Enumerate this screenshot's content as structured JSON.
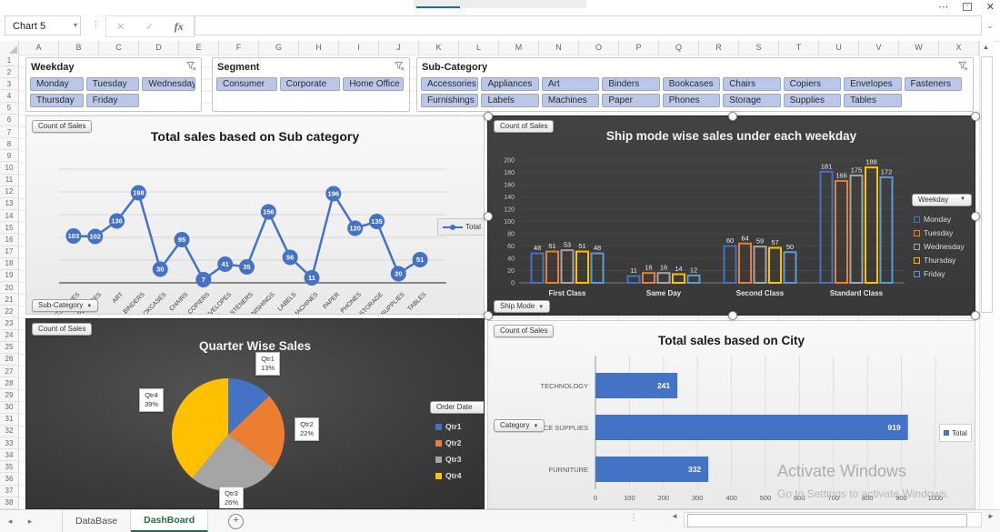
{
  "window": {
    "name_box": "Chart 5",
    "formula_value": ""
  },
  "icons": {
    "name_box_dropdown": "▾",
    "formula_cancel": "✕",
    "formula_enter": "✓",
    "formula_fx": "fx",
    "formula_expand": "⌄",
    "more": "⋯",
    "ribbon_pin": "↑",
    "close": "✕",
    "dots": "⋮",
    "tab_prev": "◂",
    "tab_next": "▸",
    "scroll_up": "▲",
    "scroll_left": "◄",
    "scroll_right": "►",
    "add_sheet": "+",
    "dropdown": "▾"
  },
  "grid": {
    "columns": [
      "A",
      "B",
      "C",
      "D",
      "E",
      "F",
      "G",
      "H",
      "I",
      "J",
      "K",
      "L",
      "M",
      "N",
      "O",
      "P",
      "Q",
      "R",
      "S",
      "T",
      "U",
      "V",
      "W",
      "X"
    ],
    "rows": [
      1,
      2,
      3,
      4,
      5,
      6,
      7,
      8,
      9,
      10,
      11,
      12,
      13,
      14,
      15,
      16,
      17,
      18,
      19,
      20,
      21,
      22,
      23,
      24,
      25,
      26,
      27,
      28,
      29,
      30,
      31,
      32,
      33,
      34,
      35,
      36,
      37,
      38
    ]
  },
  "slicers": [
    {
      "title": "Weekday",
      "items": [
        "Monday",
        "Tuesday",
        "Wednesday",
        "Thursday",
        "Friday"
      ],
      "per_row": 3
    },
    {
      "title": "Segment",
      "items": [
        "Consumer",
        "Corporate",
        "Home Office"
      ],
      "per_row": 3
    },
    {
      "title": "Sub-Category",
      "items": [
        "Accessories",
        "Appliances",
        "Art",
        "Binders",
        "Bookcases",
        "Chairs",
        "Copiers",
        "Envelopes",
        "Fasteners",
        "Furnishings",
        "Labels",
        "Machines",
        "Paper",
        "Phones",
        "Storage",
        "Supplies",
        "Tables"
      ],
      "per_row": 9
    }
  ],
  "chart_data": [
    {
      "type": "line",
      "title": "Total sales based on Sub category",
      "categories": [
        "ACCESSORIES",
        "APPLIANCES",
        "ART",
        "BINDERS",
        "BOOKCASES",
        "CHAIRS",
        "COPIERS",
        "ENVELOPES",
        "FASTENERS",
        "FURNISHINGS",
        "LABELS",
        "MACHINES",
        "PAPER",
        "PHONES",
        "STORAGE",
        "SUPPLIES",
        "TABLES"
      ],
      "values": [
        103,
        102,
        136,
        198,
        30,
        95,
        7,
        41,
        35,
        156,
        56,
        11,
        196,
        120,
        135,
        20,
        51
      ],
      "legend": "Total",
      "series_color": "#4472C4",
      "ylim": [
        0,
        250
      ],
      "grid_step": 50,
      "grid": true,
      "legend_position": "right",
      "field_buttons": {
        "top_left": "Count of Sales",
        "bottom_left": "Sub-Category"
      }
    },
    {
      "type": "bar",
      "title": "Ship mode wise sales under each weekday",
      "categories": [
        "First Class",
        "Same Day",
        "Second Class",
        "Standard Class"
      ],
      "series": [
        {
          "name": "Monday",
          "color": "#4472C4",
          "values": [
            48,
            11,
            60,
            181
          ]
        },
        {
          "name": "Tuesday",
          "color": "#ED7D31",
          "values": [
            51,
            16,
            64,
            166
          ]
        },
        {
          "name": "Wednesday",
          "color": "#A5A5A5",
          "values": [
            53,
            16,
            59,
            175
          ]
        },
        {
          "name": "Thursday",
          "color": "#FFC000",
          "values": [
            51,
            14,
            57,
            188
          ]
        },
        {
          "name": "Friday",
          "color": "#5B9BD5",
          "values": [
            48,
            12,
            50,
            172
          ]
        }
      ],
      "ylim": [
        0,
        200
      ],
      "ytick_step": 20,
      "grid": true,
      "legend_position": "right",
      "legend_button": "Weekday",
      "field_buttons": {
        "top_left": "Count of Sales",
        "bottom_left": "Ship Mode"
      }
    },
    {
      "type": "pie",
      "title": "Quarter Wise Sales",
      "categories": [
        "Qtr1",
        "Qtr2",
        "Qtr3",
        "Qtr4"
      ],
      "values_pct": [
        13,
        22,
        26,
        39
      ],
      "colors": [
        "#4472C4",
        "#ED7D31",
        "#A5A5A5",
        "#FFC000"
      ],
      "legend_position": "right",
      "legend_button": "Order Date",
      "field_buttons": {
        "top_left": "Count of Sales"
      }
    },
    {
      "type": "hbar",
      "title": "Total sales based on City",
      "categories": [
        "TECHNOLOGY",
        "OFFICE SUPPLIES",
        "FURNITURE"
      ],
      "values": [
        241,
        919,
        332
      ],
      "bar_color": "#4472C4",
      "xlim": [
        0,
        1000
      ],
      "xtick_step": 100,
      "grid": true,
      "legend": "Total",
      "legend_position": "right",
      "field_buttons": {
        "top_left": "Count of Sales",
        "left": "Category"
      }
    }
  ],
  "sheet_bar": {
    "tabs": [
      {
        "label": "DataBase",
        "active": false
      },
      {
        "label": "DashBoard",
        "active": true
      }
    ]
  },
  "watermark": {
    "line1": "Activate Windows",
    "line2": "Go to Settings to activate Windows."
  }
}
